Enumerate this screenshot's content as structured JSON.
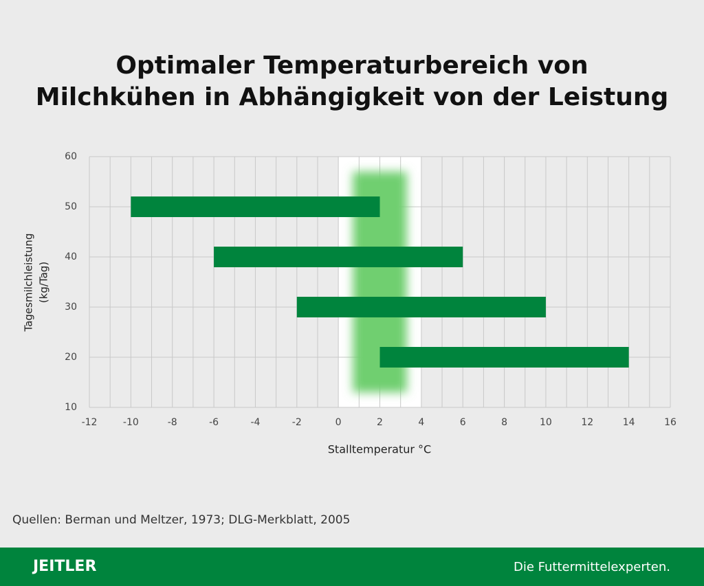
{
  "chart_data": {
    "type": "range-bar",
    "title": [
      "Optimaler Temperaturbereich von",
      "Milchkühen in Abhängigkeit von der Leistung"
    ],
    "y_label": [
      "Tagesmilchleistung",
      "(kg/Tag)"
    ],
    "x_label": "Stalltemperatur °C",
    "bars": [
      {
        "y": 50,
        "from": -10,
        "to": 2
      },
      {
        "y": 40,
        "from": -6,
        "to": 6
      },
      {
        "y": 30,
        "from": -2,
        "to": 10
      },
      {
        "y": 20,
        "from": 2,
        "to": 14
      }
    ],
    "color": "#00843d",
    "highlight_zone": {
      "x": [
        0,
        4
      ],
      "color": "#ffffff"
    },
    "optimal_zone": {
      "x": [
        0.7,
        3.3
      ],
      "y": [
        13,
        57
      ],
      "color": "#6fcf6f"
    },
    "xlim": [
      -12,
      16
    ],
    "xticks": [
      -12,
      -10,
      -8,
      -6,
      -4,
      -2,
      0,
      2,
      4,
      6,
      8,
      10,
      12,
      14,
      16
    ],
    "x_minor_grid": [
      -11,
      -9,
      -7,
      -5,
      -3,
      -1,
      1,
      3,
      5,
      7,
      9,
      11,
      13,
      15
    ],
    "ylim": [
      10,
      60
    ],
    "yticks": [
      10,
      20,
      30,
      40,
      50,
      60
    ],
    "grid": true
  },
  "source": "Quellen: Berman und Meltzer, 1973; DLG-Merkblatt, 2005",
  "footer": {
    "brand": "JEITLER",
    "slogan": "Die Futtermittelexperten."
  }
}
